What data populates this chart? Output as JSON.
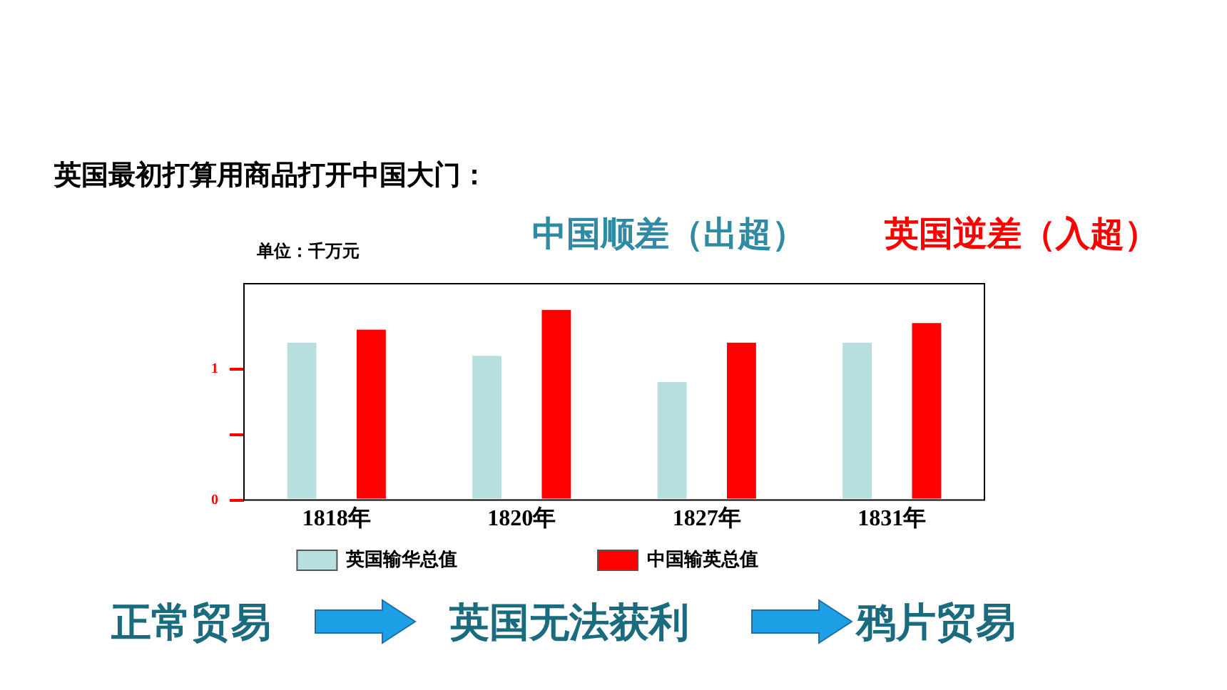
{
  "chart_data": {
    "type": "bar",
    "title": "英国最初打算用商品打开中国大门：",
    "ylabel": "单位：千万元",
    "categories": [
      "1818年",
      "1820年",
      "1827年",
      "1831年"
    ],
    "series": [
      {
        "name": "英国输华总值",
        "color": "#b7dfe0",
        "values": [
          1.2,
          1.1,
          0.9,
          1.2
        ]
      },
      {
        "name": "中国输英总值",
        "color": "#ff0000",
        "values": [
          1.3,
          1.45,
          1.2,
          1.35
        ]
      }
    ],
    "ylim": [
      0,
      1.65
    ],
    "yticks": [
      0,
      {
        "value": 0.5,
        "label": null
      },
      1
    ],
    "grid": false,
    "legend": "bottom",
    "annotations": [
      "中国顺差（出超）",
      "英国逆差（入超）",
      "正常贸易",
      "英国无法获利",
      "鸦片贸易"
    ]
  }
}
